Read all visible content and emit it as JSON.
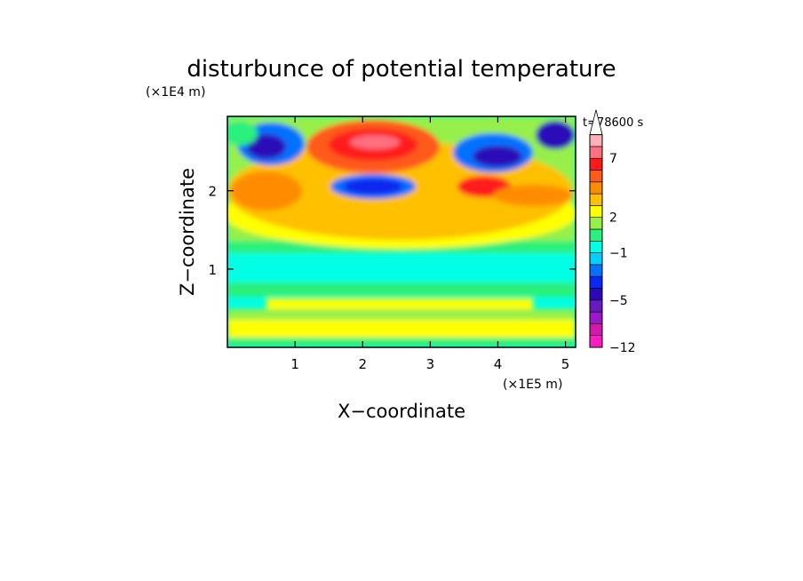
{
  "chart_data": {
    "type": "heatmap",
    "title": "disturbunce of potential temperature",
    "time_label": "t=78600 s",
    "xlabel": "X−coordinate",
    "ylabel": "Z−coordinate",
    "x_unit": "(×1E5 m)",
    "y_unit": "(×1E4 m)",
    "xlim": [
      0,
      5.15
    ],
    "ylim": [
      0,
      2.95
    ],
    "xticks": [
      "1",
      "2",
      "3",
      "4",
      "5"
    ],
    "yticks": [
      "1",
      "2"
    ],
    "colorbar": {
      "levels": [
        -12,
        -10,
        -8,
        -6,
        -5,
        -4,
        -3,
        -2,
        -1,
        0,
        1,
        2,
        3,
        4,
        5,
        6,
        7,
        8,
        9
      ],
      "tick_labels": [
        "−12",
        "−5",
        "−1",
        "2",
        "7"
      ],
      "colors": [
        "#ff1cc0",
        "#d616b0",
        "#9a1ac8",
        "#6a18c2",
        "#2a0ab8",
        "#0a28f0",
        "#0072ff",
        "#00d0ff",
        "#00ffe4",
        "#2cf07c",
        "#96f04a",
        "#ffff00",
        "#ffc000",
        "#ff8c00",
        "#ff5a1e",
        "#ff1a1a",
        "#ff7080",
        "#ffb0b8"
      ],
      "extend": "max"
    }
  }
}
